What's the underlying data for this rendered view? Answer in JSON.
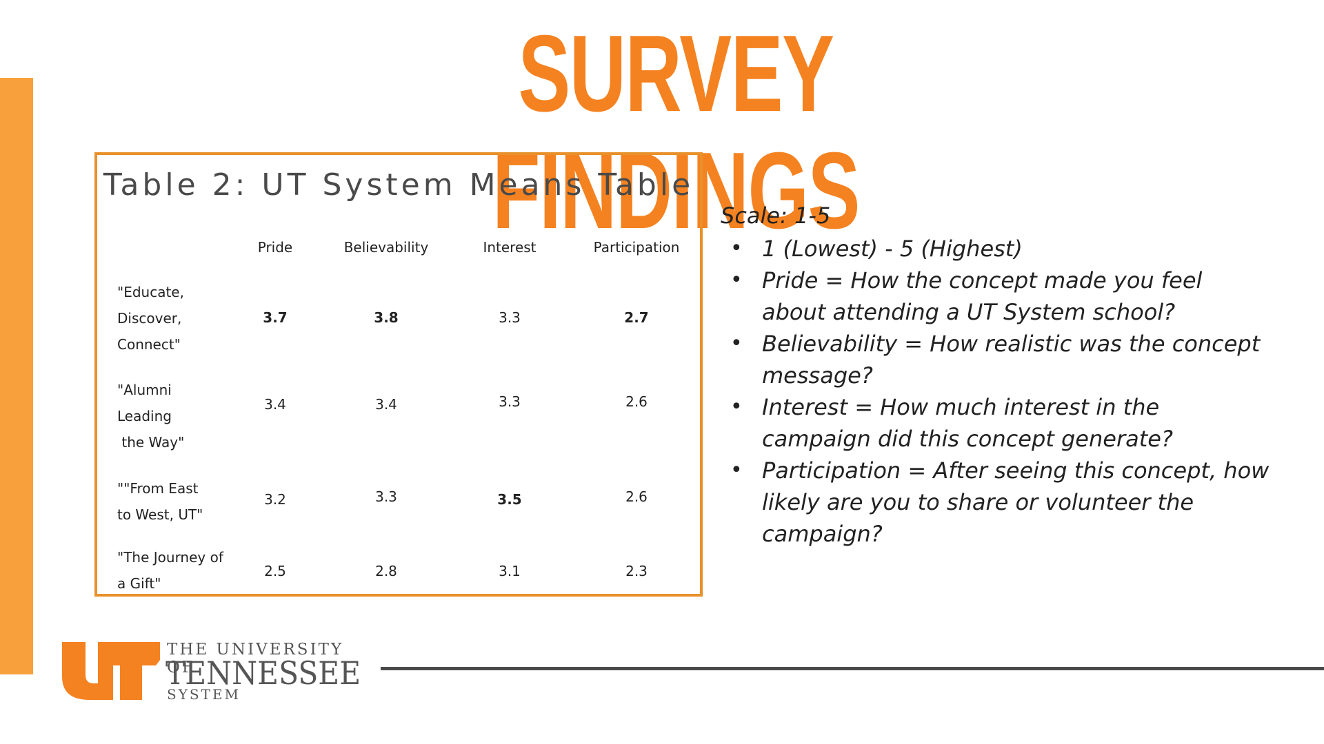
{
  "slide": {
    "title": "SURVEY FINDINGS",
    "accent_color": "#f58220"
  },
  "table": {
    "title": "Table 2: UT System Means Table",
    "headers": [
      "Pride",
      "Believability",
      "Interest",
      "Participation"
    ],
    "rows": [
      {
        "label": "\"Educate,\nDiscover,\nConnect\"",
        "values": [
          "3.7",
          "3.8",
          "3.3",
          "2.7"
        ],
        "bold": [
          true,
          true,
          false,
          true
        ]
      },
      {
        "label": "\"Alumni\nLeading\n the Way\"",
        "values": [
          "3.4",
          "3.4",
          "3.3",
          "2.6"
        ],
        "bold": [
          false,
          false,
          false,
          false
        ]
      },
      {
        "label": "\"\"From East\nto West, UT\"",
        "values": [
          "3.2",
          "3.3",
          "3.5",
          "2.6"
        ],
        "bold": [
          false,
          false,
          true,
          false
        ]
      },
      {
        "label": "\"The Journey of\na Gift\"",
        "values": [
          "2.5",
          "2.8",
          "3.1",
          "2.3"
        ],
        "bold": [
          false,
          false,
          false,
          false
        ]
      }
    ]
  },
  "scale": {
    "heading": "Scale: 1-5",
    "items": [
      "1 (Lowest) - 5 (Highest)",
      "Pride = How the concept made you feel about attending a UT System school?",
      "Believability = How realistic was the concept message?",
      "Interest = How much interest in the campaign did this concept generate?",
      "Participation = After seeing this concept, how likely are you to share or volunteer the campaign?"
    ]
  },
  "logo": {
    "line1": "THE UNIVERSITY OF",
    "line2": "TENNESSEE",
    "line3": "SYSTEM",
    "icon": "ut-logo-icon"
  }
}
